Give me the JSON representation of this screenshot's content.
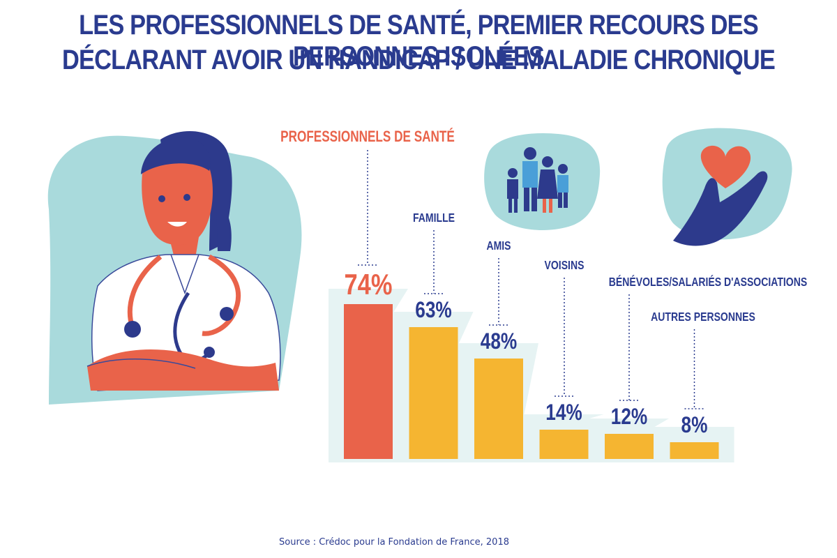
{
  "title": {
    "line1": "LES PROFESSIONNELS DE SANTÉ, PREMIER RECOURS DES PERSONNES ISOLÉES",
    "line2": "DÉCLARANT AVOIR UN HANDICAP / UNE MALADIE CHRONIQUE"
  },
  "source": "Source : Crédoc pour la Fondation de France, 2018",
  "colors": {
    "title": "#2a3b8f",
    "highlight": "#e9634a",
    "bar": "#f5b531",
    "bar_bg": "#e6f3f3",
    "label": "#2a3b8f",
    "blob": "#a9dadc"
  },
  "illustrations": [
    "doctor-with-stethoscope",
    "family-icon",
    "heart-in-hand-icon"
  ],
  "chart_data": {
    "type": "bar",
    "categories": [
      "PROFESSIONNELS DE SANTÉ",
      "FAMILLE",
      "AMIS",
      "VOISINS",
      "BÉNÉVOLES/SALARIÉS D'ASSOCIATIONS",
      "AUTRES PERSONNES"
    ],
    "values": [
      74,
      63,
      48,
      14,
      12,
      8
    ],
    "value_labels": [
      "74%",
      "63%",
      "48%",
      "14%",
      "12%",
      "8%"
    ],
    "highlight_index": 0,
    "ylim": [
      0,
      74
    ],
    "xlabel": "",
    "ylabel": "",
    "grid": false,
    "legend": "none"
  }
}
